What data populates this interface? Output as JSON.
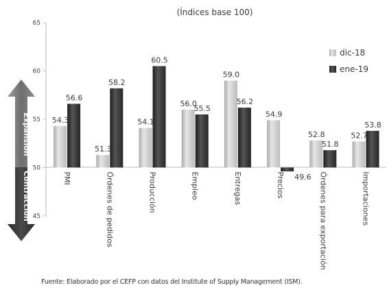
{
  "chart_data": {
    "type": "bar",
    "title": "(Índices base 100)",
    "categories": [
      "PMI",
      "Órdenes de pedidos",
      "Producción",
      "Empleo",
      "Entregas",
      "Precios",
      "Órdenes para exportación",
      "Importaciones"
    ],
    "series": [
      {
        "name": "dic-18",
        "values": [
          54.3,
          51.3,
          54.1,
          56.0,
          59.0,
          54.9,
          52.8,
          52.7
        ],
        "labels": [
          "54.3",
          "51.3",
          "54.1",
          "56.0",
          "59.0",
          "54.9",
          "52.8",
          "52.7"
        ],
        "color": "#c8c8c8"
      },
      {
        "name": "ene-19",
        "values": [
          56.6,
          58.2,
          60.5,
          55.5,
          56.2,
          49.6,
          51.8,
          53.8
        ],
        "labels": [
          "56.6",
          "58.2",
          "60.5",
          "55.5",
          "56.2",
          "49.6",
          "51.8",
          "53.8"
        ],
        "color": "#3b3b3b"
      }
    ],
    "baseline": 50,
    "ylim": [
      45,
      65
    ],
    "yticks": [
      45,
      50,
      55,
      60,
      65
    ],
    "grid": false,
    "legend_position": "right",
    "zone_labels": {
      "expansion": "Expansión",
      "contraction": "Contracción"
    },
    "source": "Fuente: Elaborado por el CEFP con datos del Institute of Supply Management (ISM)."
  }
}
